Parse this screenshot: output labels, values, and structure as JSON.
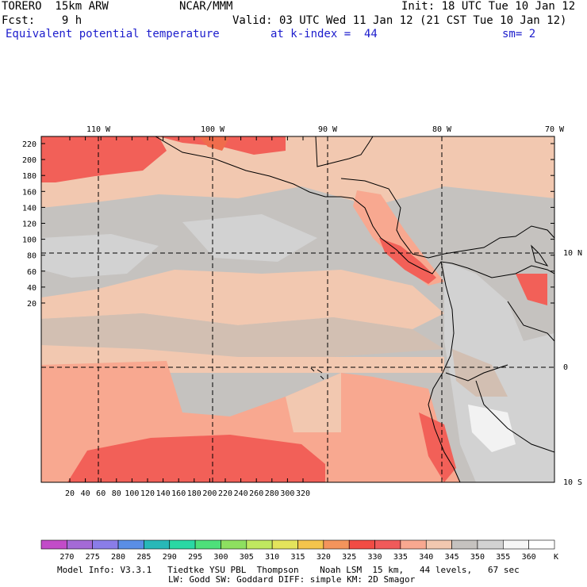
{
  "header": {
    "model": "TORERO  15km ARW",
    "center": "NCAR/MMM",
    "init": "Init: 18 UTC Tue 10 Jan 12",
    "fcst": "Fcst:    9 h",
    "valid": "Valid: 03 UTC Wed 11 Jan 12 (21 CST Tue 10 Jan 12)",
    "field": "Equivalent potential temperature",
    "level": "at k-index =  44",
    "smooth": "sm= 2"
  },
  "map": {
    "lon_labels": [
      "110 W",
      "100 W",
      "90 W",
      "80 W",
      "70 W"
    ],
    "lat_labels": [
      "10 N",
      "0",
      "10 S"
    ],
    "y_ticks": [
      "220",
      "200",
      "180",
      "160",
      "140",
      "120",
      "100",
      "80",
      "60",
      "40",
      "20"
    ],
    "x_ticks": [
      "20",
      "40",
      "60",
      "80",
      "100",
      "120",
      "140",
      "160",
      "180",
      "200",
      "220",
      "240",
      "260",
      "280",
      "300",
      "320"
    ],
    "colors": {
      "c355": "#d2d2d2",
      "c350": "#c5c2bf",
      "c345": "#d2bfb2",
      "c340": "#f2c8b0",
      "c335": "#f8a890",
      "c330": "#f26058",
      "c325": "#f06c4c",
      "c360": "#f2f2f2"
    }
  },
  "colorbar": {
    "labels": [
      "270",
      "275",
      "280",
      "285",
      "290",
      "295",
      "300",
      "305",
      "310",
      "315",
      "320",
      "325",
      "330",
      "335",
      "340",
      "345",
      "350",
      "355",
      "360"
    ],
    "unit": "K",
    "colors": [
      "#c24cc8",
      "#a46ad6",
      "#8a7de8",
      "#5a8ee6",
      "#28b8b8",
      "#2ad8a4",
      "#4ee07a",
      "#8ee060",
      "#c0e860",
      "#e4e45c",
      "#f4c44c",
      "#f4945c",
      "#f24c44",
      "#f05a5a",
      "#f8a890",
      "#f2c8b0",
      "#c5c2bf",
      "#d2d2d2",
      "#f6f6f6",
      "#ffffff"
    ]
  },
  "footer": {
    "line1": "Model Info: V3.3.1   Tiedtke YSU PBL  Thompson    Noah LSM  15 km,   44 levels,   67 sec",
    "line2": "LW: Godd SW: Goddard DIFF: simple KM: 2D Smagor"
  }
}
